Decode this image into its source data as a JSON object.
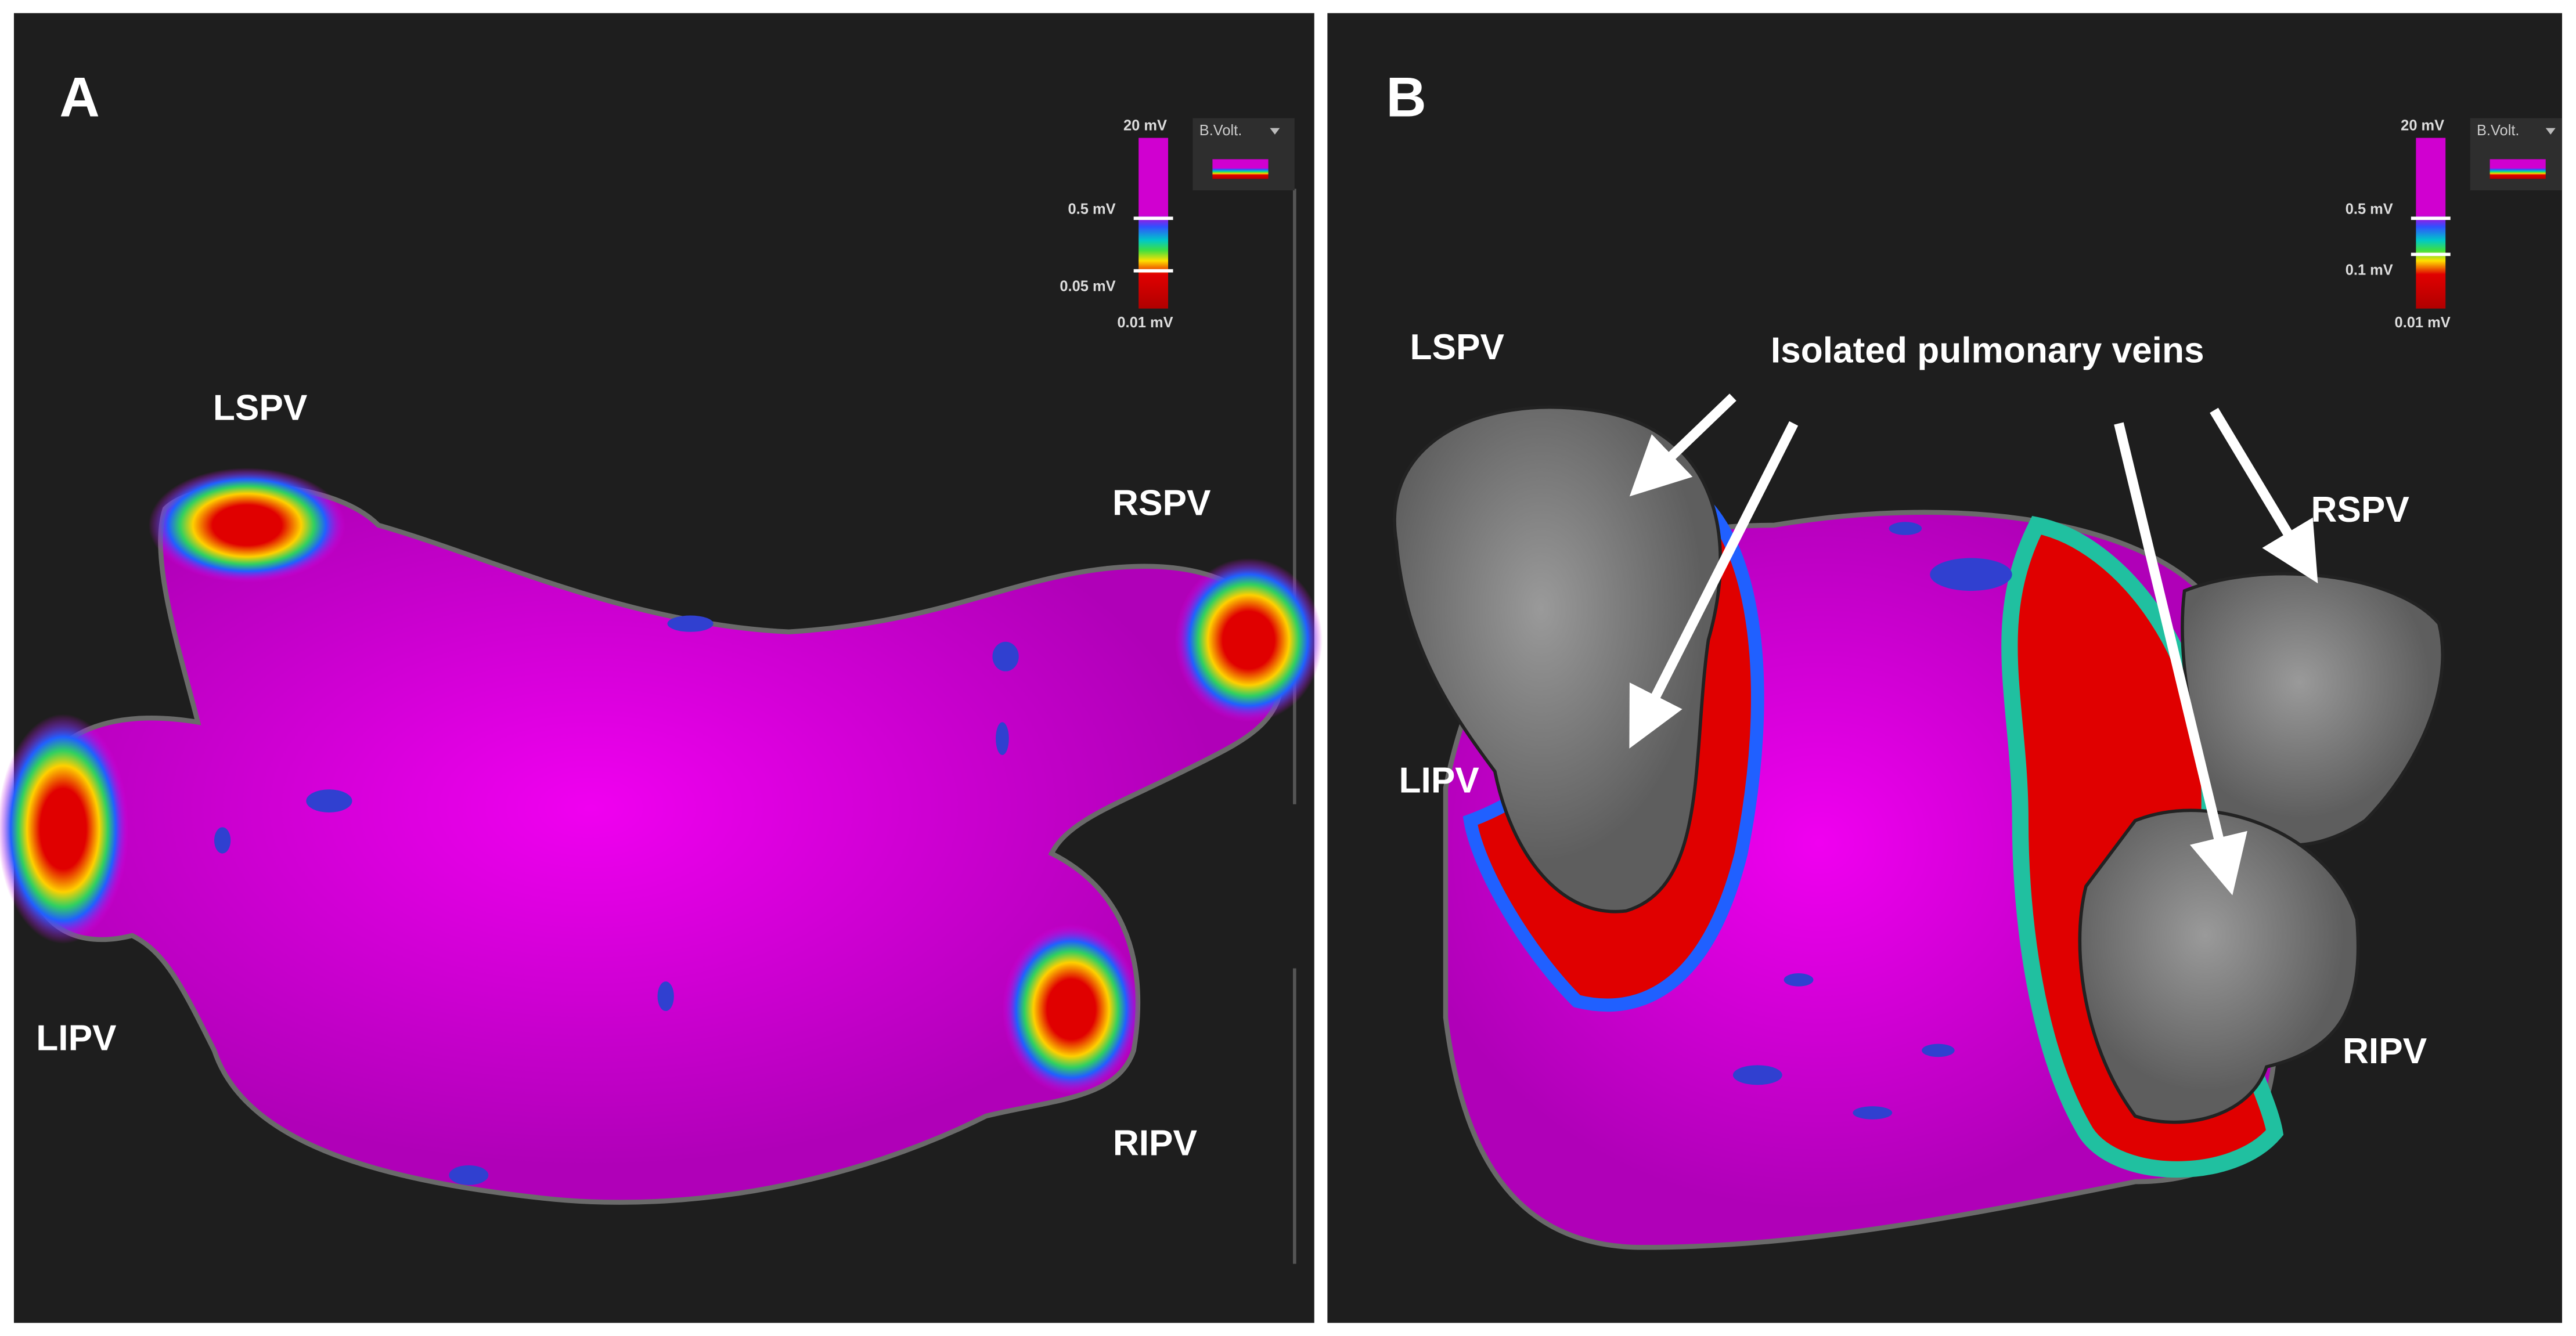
{
  "panels": [
    {
      "label": "A",
      "scale": [
        "20 mV",
        "0.5 mV",
        "0.05 mV",
        "0.01 mV"
      ],
      "menu": "B.Volt.",
      "veins": [
        "LSPV",
        "RSPV",
        "LIPV",
        "RIPV"
      ]
    },
    {
      "label": "B",
      "scale": [
        "20 mV",
        "0.5 mV",
        "0.1 mV",
        "0.01 mV"
      ],
      "menu": "B.Volt.",
      "veins": [
        "LSPV",
        "RSPV",
        "LIPV",
        "RIPV"
      ],
      "annotation": "Isolated pulmonary veins"
    }
  ]
}
